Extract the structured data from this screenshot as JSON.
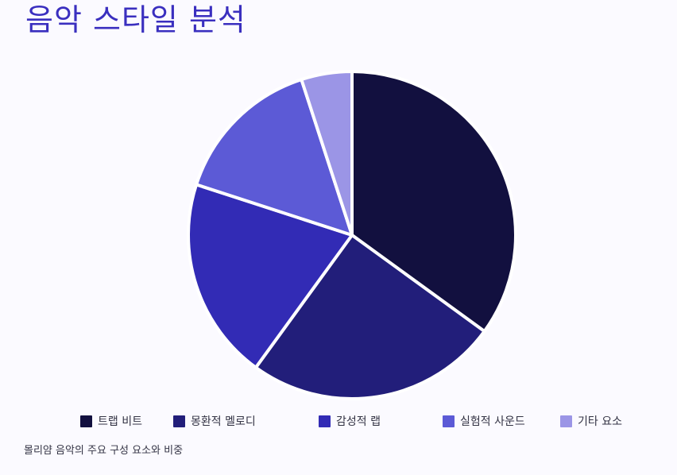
{
  "title": "음악 스타일 분석",
  "caption": "몰리얌 음악의 주요 구성 요소와 비중",
  "chart_data": {
    "type": "pie",
    "title": "음악 스타일 분석",
    "legend_position": "bottom",
    "slices": [
      {
        "label": "트랩 비트",
        "value": 35,
        "color": "#12103f"
      },
      {
        "label": "몽환적 멜로디",
        "value": 25,
        "color": "#221e7a"
      },
      {
        "label": "감성적 랩",
        "value": 20,
        "color": "#322bb5"
      },
      {
        "label": "실험적 사운드",
        "value": 15,
        "color": "#5c5ad6"
      },
      {
        "label": "기타 요소",
        "value": 5,
        "color": "#9b95e6"
      }
    ],
    "slice_border_color": "#ffffff",
    "start_angle": "12 o'clock",
    "direction": "clockwise"
  }
}
